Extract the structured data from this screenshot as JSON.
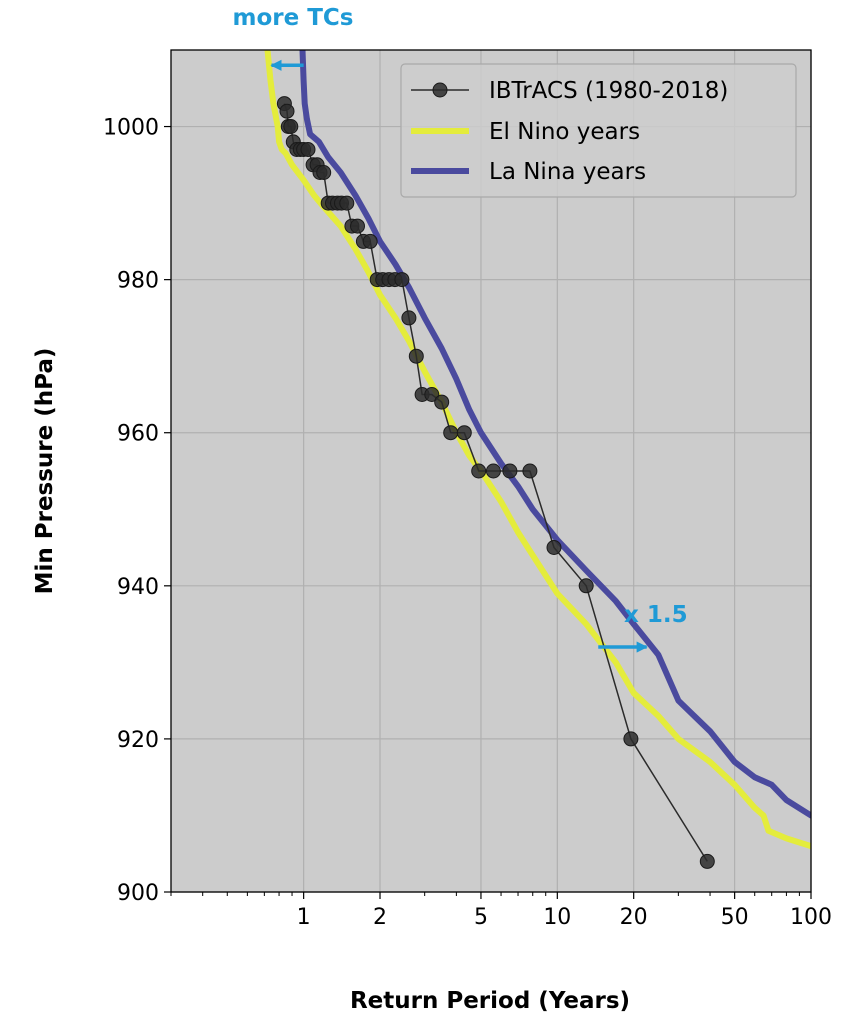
{
  "chart_data": {
    "type": "line",
    "x_scale": "log",
    "xlabel": "Return Period (Years)",
    "ylabel": "Min Pressure (hPa)",
    "xlim": [
      0.3,
      100
    ],
    "ylim": [
      900,
      1010
    ],
    "x_ticks": [
      1,
      2,
      5,
      10,
      20,
      50,
      100
    ],
    "x_tick_labels": [
      "1",
      "2",
      "5",
      "10",
      "20",
      "50",
      "100"
    ],
    "y_ticks": [
      900,
      920,
      940,
      960,
      980,
      1000
    ],
    "y_tick_labels": [
      "900",
      "920",
      "940",
      "960",
      "980",
      "1000"
    ],
    "grid": true,
    "legend_position": "top-right",
    "series": [
      {
        "name": "IBTrACS (1980-2018)",
        "style": "line-marker",
        "color": "#2b2b2b",
        "points": [
          [
            0.84,
            1003
          ],
          [
            0.86,
            1002
          ],
          [
            0.87,
            1000
          ],
          [
            0.89,
            1000
          ],
          [
            0.91,
            998
          ],
          [
            0.94,
            997
          ],
          [
            0.97,
            997
          ],
          [
            1.0,
            997
          ],
          [
            1.04,
            997
          ],
          [
            1.09,
            995
          ],
          [
            1.13,
            995
          ],
          [
            1.16,
            994
          ],
          [
            1.2,
            994
          ],
          [
            1.25,
            990
          ],
          [
            1.3,
            990
          ],
          [
            1.36,
            990
          ],
          [
            1.41,
            990
          ],
          [
            1.48,
            990
          ],
          [
            1.55,
            987
          ],
          [
            1.63,
            987
          ],
          [
            1.72,
            985
          ],
          [
            1.83,
            985
          ],
          [
            1.95,
            980
          ],
          [
            2.05,
            980
          ],
          [
            2.17,
            980
          ],
          [
            2.29,
            980
          ],
          [
            2.44,
            980
          ],
          [
            2.6,
            975
          ],
          [
            2.78,
            970
          ],
          [
            2.93,
            965
          ],
          [
            3.2,
            965
          ],
          [
            3.5,
            964
          ],
          [
            3.8,
            960
          ],
          [
            4.3,
            960
          ],
          [
            4.9,
            955
          ],
          [
            5.6,
            955
          ],
          [
            6.5,
            955
          ],
          [
            7.8,
            955
          ],
          [
            9.7,
            945
          ],
          [
            13.0,
            940
          ],
          [
            19.5,
            920
          ],
          [
            39.0,
            904
          ]
        ]
      },
      {
        "name": "El Nino years",
        "style": "line",
        "color": "#e4ec3c",
        "points": [
          [
            0.72,
            1010
          ],
          [
            0.74,
            1006
          ],
          [
            0.76,
            1003
          ],
          [
            0.79,
            1000
          ],
          [
            0.8,
            998
          ],
          [
            0.82,
            997
          ],
          [
            0.85,
            996.5
          ],
          [
            0.9,
            995
          ],
          [
            1.0,
            993
          ],
          [
            1.1,
            991
          ],
          [
            1.2,
            989.5
          ],
          [
            1.4,
            987
          ],
          [
            1.6,
            984
          ],
          [
            1.8,
            981
          ],
          [
            2.0,
            978
          ],
          [
            2.3,
            975
          ],
          [
            2.6,
            972
          ],
          [
            3.0,
            968
          ],
          [
            3.5,
            964
          ],
          [
            4.0,
            960
          ],
          [
            4.5,
            957
          ],
          [
            5.0,
            955
          ],
          [
            6.0,
            951
          ],
          [
            7.0,
            947
          ],
          [
            8.0,
            944
          ],
          [
            10.0,
            939
          ],
          [
            13.0,
            935
          ],
          [
            17.0,
            930
          ],
          [
            20.0,
            926
          ],
          [
            25.0,
            923
          ],
          [
            30.0,
            920
          ],
          [
            40.0,
            917
          ],
          [
            50.0,
            914
          ],
          [
            60.0,
            911
          ],
          [
            65.0,
            910
          ],
          [
            68.0,
            908
          ],
          [
            80.0,
            907
          ],
          [
            100.0,
            906
          ]
        ]
      },
      {
        "name": "La Nina years",
        "style": "line",
        "color": "#4a4a9e",
        "points": [
          [
            0.99,
            1010
          ],
          [
            1.0,
            1006
          ],
          [
            1.01,
            1003
          ],
          [
            1.03,
            1001
          ],
          [
            1.06,
            999
          ],
          [
            1.15,
            998
          ],
          [
            1.25,
            996
          ],
          [
            1.4,
            994
          ],
          [
            1.6,
            991
          ],
          [
            1.8,
            988
          ],
          [
            2.0,
            985
          ],
          [
            2.3,
            982
          ],
          [
            2.6,
            979
          ],
          [
            3.0,
            975
          ],
          [
            3.5,
            971
          ],
          [
            4.0,
            967
          ],
          [
            4.5,
            963
          ],
          [
            5.0,
            960
          ],
          [
            6.0,
            956
          ],
          [
            7.0,
            953
          ],
          [
            8.0,
            950
          ],
          [
            10.0,
            946
          ],
          [
            13.0,
            942
          ],
          [
            17.0,
            938
          ],
          [
            20.0,
            935
          ],
          [
            25.0,
            931
          ],
          [
            30.0,
            925
          ],
          [
            40.0,
            921
          ],
          [
            50.0,
            917
          ],
          [
            60.0,
            915
          ],
          [
            70.0,
            914
          ],
          [
            80.0,
            912
          ],
          [
            100.0,
            910
          ]
        ]
      }
    ],
    "annotations": [
      {
        "text": "more TCs",
        "arrow_from": [
          1.0,
          1008
        ],
        "arrow_to": [
          0.72,
          1008
        ]
      },
      {
        "text": "x 1.5",
        "arrow_from": [
          14.5,
          932
        ],
        "arrow_to": [
          22.5,
          932
        ]
      }
    ]
  }
}
